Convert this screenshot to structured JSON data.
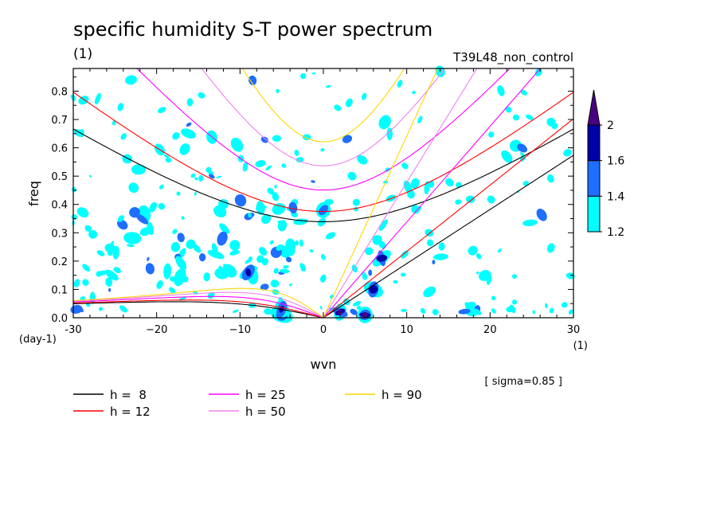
{
  "chart_data": {
    "type": "heatmap",
    "title": "specific humidity S-T power spectrum",
    "subtitle_left": "(1)",
    "subtitle_right": "T39L48_non_control",
    "xlabel": "wvn",
    "ylabel": "freq",
    "x_unit": "(1)",
    "y_unit": "(day-1)",
    "xlim": [
      -30,
      30
    ],
    "ylim": [
      0,
      0.88
    ],
    "x_ticks": [
      -30,
      -20,
      -10,
      0,
      10,
      20,
      30
    ],
    "x_tick_labels": [
      "-30",
      "−20",
      "−10",
      "0",
      "10",
      "20",
      "30"
    ],
    "y_ticks": [
      0,
      0.1,
      0.2,
      0.3,
      0.4,
      0.5,
      0.6,
      0.7,
      0.8
    ],
    "y_tick_labels": [
      "0.0",
      "0.1",
      "0.2",
      "0.3",
      "0.4",
      "0.5",
      "0.6",
      "0.7",
      "0.8"
    ],
    "note": "[ sigma=0.85 ]",
    "colorbar": {
      "levels": [
        1.2,
        1.4,
        1.6,
        2
      ],
      "level_labels": [
        "1.2",
        "1.4",
        "1.6",
        "2"
      ],
      "colors": [
        "#00ffff",
        "#1e6eff",
        "#0000a8",
        "#4b0082"
      ]
    },
    "dispersion_curves": [
      {
        "label": "h =  8",
        "h": 8,
        "color": "#000000"
      },
      {
        "label": "h = 12",
        "h": 12,
        "color": "#ff0000"
      },
      {
        "label": "h = 25",
        "h": 25,
        "color": "#ff00ff"
      },
      {
        "label": "h = 50",
        "h": 50,
        "color": "#ee82ee"
      },
      {
        "label": "h = 90",
        "h": 90,
        "color": "#ffd700"
      }
    ],
    "curve_families": [
      "Kelvin wave (freq rising from origin for positive wvn)",
      "n=1 inertia-gravity waves (U-shaped curves, min near wvn 0)",
      "n=1 equatorial Rossby waves (low freq, negative wvn)",
      "mixed Rossby-gravity waves (near origin)"
    ],
    "peaks": [
      {
        "x": -5,
        "y": 0.01,
        "value": 2
      },
      {
        "x": 2,
        "y": 0.02,
        "value": 2
      },
      {
        "x": 5,
        "y": 0.01,
        "value": 2
      },
      {
        "x": 6,
        "y": 0.1,
        "value": 1.8
      },
      {
        "x": 7,
        "y": 0.21,
        "value": 1.6
      },
      {
        "x": -9,
        "y": 0.16,
        "value": 1.6
      },
      {
        "x": -5,
        "y": 0.03,
        "value": 1.6
      },
      {
        "x": 0,
        "y": 0.38,
        "value": 1.4
      }
    ]
  }
}
